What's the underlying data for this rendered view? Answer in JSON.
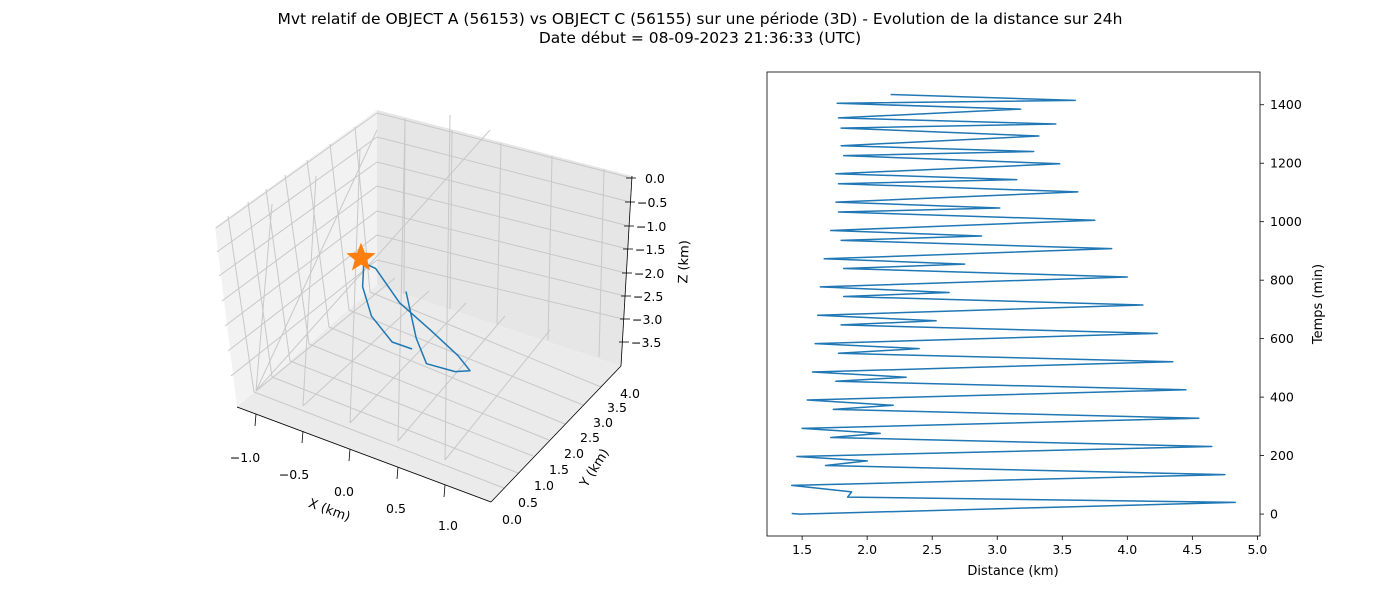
{
  "figure": {
    "title_line1": "Mvt relatif de OBJECT A (56153) vs OBJECT C (56155) sur une période (3D) - Evolution de la distance sur 24h",
    "title_line2": "Date début = 08-09-2023 21:36:33 (UTC)"
  },
  "colors": {
    "series": "#1f77b4",
    "marker": "#ff7f0e",
    "pane_left": "#f2f2f2",
    "pane_right": "#e6e6e6",
    "pane_floor": "#ebebeb",
    "grid": "#c8c8c8"
  },
  "chart_data": [
    {
      "type": "line3d",
      "xlabel": "X (km)",
      "ylabel": "Y (km)",
      "zlabel": "Z (km)",
      "xlim": [
        -1.25,
        1.25
      ],
      "ylim": [
        0,
        4.2
      ],
      "zlim": [
        -3.8,
        0
      ],
      "xticks": [
        "−1.0",
        "−0.5",
        "0.0",
        "0.5",
        "1.0"
      ],
      "yticks": [
        "0.0",
        "0.5",
        "1.0",
        "1.5",
        "2.0",
        "2.5",
        "3.0",
        "3.5",
        "4.0"
      ],
      "zticks": [
        "0.0",
        "−0.5",
        "−1.0",
        "−1.5",
        "−2.0",
        "−2.5",
        "−3.0",
        "−3.5"
      ],
      "marker": {
        "shape": "star",
        "x": 0,
        "y": 0,
        "z": 0
      },
      "series": [
        {
          "x": [
            0.02,
            0.35,
            0.55,
            0.7,
            0.65,
            0.3,
            -0.2,
            -0.7,
            -1.1,
            -1.15,
            -0.9,
            -0.55,
            -0.15,
            0.08
          ],
          "y": [
            3.0,
            3.7,
            4.0,
            3.6,
            3.0,
            2.3,
            1.6,
            1.0,
            0.5,
            0.7,
            1.5,
            2.3,
            2.9,
            3.0
          ],
          "z": [
            -1.0,
            -1.3,
            -1.5,
            -1.8,
            -2.2,
            -2.6,
            -2.9,
            -3.1,
            -3.0,
            -2.8,
            -2.6,
            -2.45,
            -2.3,
            -2.2
          ]
        }
      ]
    },
    {
      "type": "line",
      "xlabel": "Distance (km)",
      "ylabel": "Temps (min)",
      "xlim": [
        1.23,
        5.02
      ],
      "ylim": [
        -75,
        1512
      ],
      "xticks": [
        1.5,
        2.0,
        2.5,
        3.0,
        3.5,
        4.0,
        4.5,
        5.0
      ],
      "xtick_labels": [
        "1.5",
        "2.0",
        "2.5",
        "3.0",
        "3.5",
        "4.0",
        "4.5",
        "5.0"
      ],
      "yticks": [
        0,
        200,
        400,
        600,
        800,
        1000,
        1200,
        1400
      ],
      "ytick_labels": [
        "0",
        "200",
        "400",
        "600",
        "800",
        "1000",
        "1200",
        "1400"
      ],
      "y_axis_side": "right",
      "series": [
        {
          "x": [
            1.42,
            1.48,
            4.83,
            1.85,
            1.88,
            1.42,
            4.75,
            1.68,
            2.0,
            1.46,
            4.65,
            1.72,
            2.1,
            1.5,
            4.55,
            1.74,
            2.2,
            1.54,
            4.45,
            1.76,
            2.3,
            1.58,
            4.35,
            1.78,
            2.4,
            1.6,
            4.23,
            1.8,
            2.53,
            1.62,
            4.12,
            1.82,
            2.63,
            1.64,
            4.0,
            1.82,
            2.75,
            1.67,
            3.88,
            1.8,
            2.88,
            1.72,
            3.75,
            1.78,
            3.02,
            1.76,
            3.62,
            1.78,
            3.15,
            1.76,
            3.48,
            1.82,
            3.28,
            1.8,
            3.32,
            1.8,
            3.45,
            1.78,
            3.18,
            1.77,
            3.6,
            2.18
          ],
          "y": [
            2,
            0,
            40,
            58,
            76,
            98,
            135,
            166,
            182,
            197,
            231,
            262,
            276,
            293,
            328,
            358,
            372,
            390,
            425,
            454,
            468,
            486,
            521,
            550,
            566,
            583,
            618,
            647,
            661,
            680,
            715,
            744,
            758,
            777,
            811,
            840,
            855,
            873,
            908,
            936,
            951,
            970,
            1005,
            1033,
            1047,
            1067,
            1102,
            1130,
            1144,
            1164,
            1198,
            1226,
            1240,
            1260,
            1293,
            1320,
            1334,
            1355,
            1385,
            1405,
            1415,
            1435
          ]
        }
      ]
    }
  ]
}
